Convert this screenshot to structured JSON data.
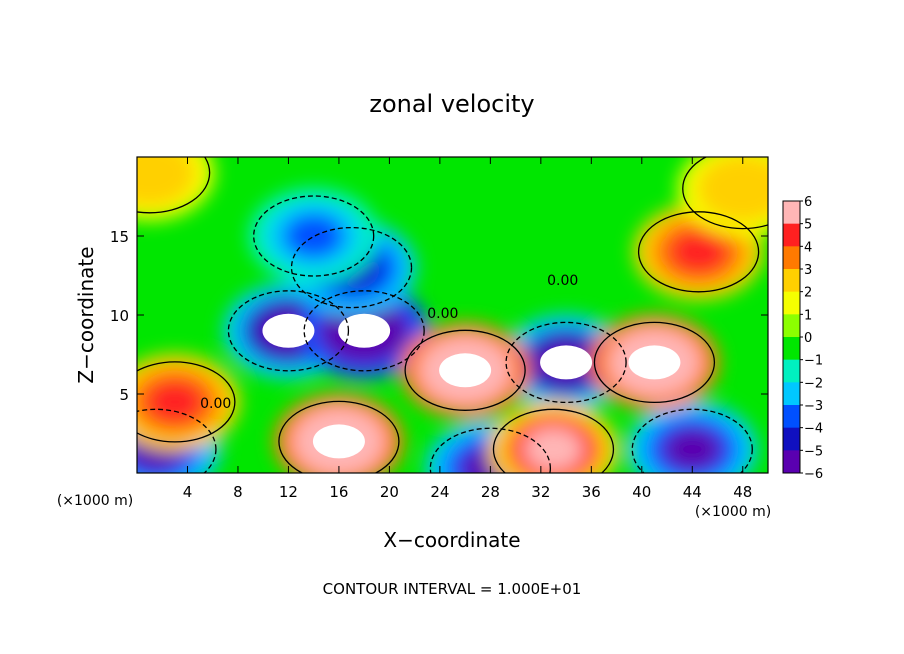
{
  "chart_data": {
    "type": "heatmap",
    "title": "zonal velocity",
    "xlabel": "X−coordinate",
    "ylabel": "Z−coordinate",
    "x_unit_left": "(×1000 m)",
    "x_unit_right": "(×1000 m)",
    "footer": "CONTOUR INTERVAL = 1.000E+01",
    "xlim": [
      0,
      50
    ],
    "ylim": [
      0,
      20
    ],
    "x_ticks": [
      "4",
      "8",
      "12",
      "16",
      "20",
      "24",
      "28",
      "32",
      "36",
      "40",
      "44",
      "48"
    ],
    "x_tick_values": [
      4,
      8,
      12,
      16,
      20,
      24,
      28,
      32,
      36,
      40,
      44,
      48
    ],
    "y_ticks": [
      "5",
      "10",
      "15"
    ],
    "y_tick_values": [
      5,
      10,
      15
    ],
    "colorbar": {
      "range": [
        -6,
        6
      ],
      "tick_labels": [
        "6",
        "5",
        "4",
        "3",
        "2",
        "1",
        "0",
        "−1",
        "−2",
        "−3",
        "−4",
        "−5",
        "−6"
      ],
      "tick_values": [
        6,
        5,
        4,
        3,
        2,
        1,
        0,
        -1,
        -2,
        -3,
        -4,
        -5,
        -6
      ],
      "colors": [
        "#ffb6b6",
        "#ff2020",
        "#ff7a00",
        "#ffd000",
        "#f5ff00",
        "#8cff00",
        "#00e600",
        "#00f0c0",
        "#00c8ff",
        "#0050ff",
        "#1010c0",
        "#5a00b0"
      ]
    },
    "contour_labels": [
      {
        "text": "0.00",
        "x": 5,
        "y": 4.1
      },
      {
        "text": "0.00",
        "x": 23,
        "y": 9.8
      },
      {
        "text": "0.00",
        "x": 32.5,
        "y": 11.9
      }
    ],
    "features": [
      {
        "kind": "min",
        "x": 12,
        "y": 9,
        "v": -6.5
      },
      {
        "kind": "min",
        "x": 18,
        "y": 9,
        "v": -7
      },
      {
        "kind": "min",
        "x": 17,
        "y": 13,
        "v": -4.5
      },
      {
        "kind": "min",
        "x": 14,
        "y": 15,
        "v": -3.5
      },
      {
        "kind": "min",
        "x": 34,
        "y": 7,
        "v": -6.5
      },
      {
        "kind": "min",
        "x": 1.5,
        "y": 1.5,
        "v": -5
      },
      {
        "kind": "min",
        "x": 44,
        "y": 1.5,
        "v": -5
      },
      {
        "kind": "min",
        "x": 28,
        "y": 0.3,
        "v": -5
      },
      {
        "kind": "max",
        "x": 26,
        "y": 6.5,
        "v": 7
      },
      {
        "kind": "max",
        "x": 41,
        "y": 7,
        "v": 7
      },
      {
        "kind": "max",
        "x": 16,
        "y": 2,
        "v": 7
      },
      {
        "kind": "max",
        "x": 3,
        "y": 4.5,
        "v": 5
      },
      {
        "kind": "max",
        "x": 33,
        "y": 1.5,
        "v": 6
      },
      {
        "kind": "max",
        "x": 44.5,
        "y": 14,
        "v": 5
      },
      {
        "kind": "max",
        "x": 1,
        "y": 19,
        "v": 3
      },
      {
        "kind": "max",
        "x": 48,
        "y": 18,
        "v": 3
      }
    ]
  }
}
